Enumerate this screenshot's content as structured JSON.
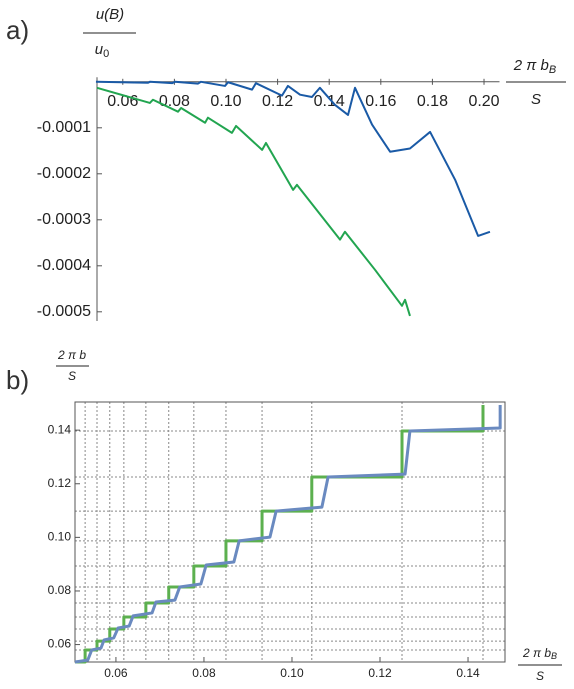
{
  "chart_data": [
    {
      "type": "line",
      "panel_label": "a)",
      "ylabel": {
        "numerator": "u(B)",
        "denominator": "u",
        "denominator_subscript": "0"
      },
      "xlabel": {
        "numerator": "2 π b",
        "numerator_subscript": "B",
        "denominator": "S"
      },
      "frame": false,
      "xlim": [
        0.049,
        0.206
      ],
      "ylim": [
        -0.00052,
        1e-05
      ],
      "xticks": [
        0.06,
        0.08,
        {
          "value": 0.1,
          "label": "0.10"
        },
        0.12,
        0.14,
        0.16,
        0.18,
        {
          "value": 0.2,
          "label": "0.20"
        }
      ],
      "yticks": [
        -0.0001,
        -0.0002,
        -0.0003,
        -0.0004,
        -0.0005
      ],
      "series": [
        {
          "color": "#1a5aa6",
          "x": [
            0.0496,
            0.0698,
            0.0705,
            0.0791,
            0.0802,
            0.0891,
            0.0903,
            0.0996,
            0.1008,
            0.1101,
            0.1116,
            0.1217,
            0.124,
            0.1287,
            0.1333,
            0.1364,
            0.1422,
            0.1473,
            0.15,
            0.1566,
            0.1636,
            0.1713,
            0.1791,
            0.1888,
            0.1977,
            0.2023
          ],
          "values": [
            0,
            -2e-06,
            0,
            -3e-06,
            0,
            -4e-06,
            0,
            -9e-06,
            -1e-06,
            -1.7e-05,
            -3e-06,
            -3e-05,
            -9e-06,
            -2.8e-05,
            -3.3e-05,
            -1.3e-05,
            -5e-05,
            -7.2e-05,
            -1.3e-05,
            -9.3e-05,
            -0.000152,
            -0.000145,
            -0.000109,
            -0.000213,
            -0.000335,
            -0.000326
          ]
        },
        {
          "color": "#22a550",
          "x": [
            0.05,
            0.0705,
            0.0717,
            0.0814,
            0.0826,
            0.0919,
            0.093,
            0.1023,
            0.1039,
            0.114,
            0.1155,
            0.126,
            0.1275,
            0.1442,
            0.1461,
            0.1578,
            0.1682,
            0.1694,
            0.1713
          ],
          "values": [
            -1.3e-05,
            -4.6e-05,
            -3.9e-05,
            -6.5e-05,
            -5.7e-05,
            -8.9e-05,
            -7.8e-05,
            -0.000111,
            -9.6e-05,
            -0.000148,
            -0.000133,
            -0.000235,
            -0.000224,
            -0.000343,
            -0.000326,
            -0.000409,
            -0.000487,
            -0.000474,
            -0.000509
          ]
        }
      ]
    },
    {
      "type": "line",
      "panel_label": "b)",
      "ylabel": {
        "numerator": "2 π b",
        "denominator": "S"
      },
      "xlabel": {
        "numerator": "2 π b",
        "numerator_subscript": "B",
        "denominator": "S"
      },
      "frame": true,
      "grid": true,
      "xlim": [
        0.0507,
        0.1484
      ],
      "ylim": [
        0.0535,
        0.1505
      ],
      "xticks": [
        0.06,
        0.08,
        {
          "value": 0.1,
          "label": "0.10"
        },
        0.12,
        0.14
      ],
      "yticks": [
        0.06,
        0.08,
        {
          "value": 0.1,
          "label": "0.10"
        },
        0.12,
        0.14
      ],
      "xgrid": [
        0.053,
        0.0557,
        0.0586,
        0.0618,
        0.0668,
        0.072,
        0.0777,
        0.085,
        0.0932,
        0.1045,
        0.125,
        0.1434
      ],
      "ygrid": [
        0.058,
        0.0613,
        0.0658,
        0.0703,
        0.0755,
        0.0815,
        0.0893,
        0.0987,
        0.1098,
        0.1225,
        0.1397
      ],
      "series": [
        {
          "color": "#5cb04f",
          "x": [
            0.0507,
            0.053,
            0.053,
            0.0557,
            0.0557,
            0.0586,
            0.0586,
            0.0618,
            0.0618,
            0.0668,
            0.0668,
            0.072,
            0.072,
            0.0777,
            0.0777,
            0.085,
            0.085,
            0.0932,
            0.0932,
            0.1045,
            0.1045,
            0.125,
            0.125,
            0.1434,
            0.1434
          ],
          "values": [
            0.0535,
            0.0535,
            0.058,
            0.058,
            0.0613,
            0.0613,
            0.0658,
            0.0658,
            0.0703,
            0.0703,
            0.0755,
            0.0755,
            0.0815,
            0.0815,
            0.0893,
            0.0893,
            0.0987,
            0.0987,
            0.1098,
            0.1098,
            0.1225,
            0.1225,
            0.1397,
            0.1397,
            0.1494
          ]
        },
        {
          "color": "#6a8ac0",
          "x": [
            0.0507,
            0.0536,
            0.0545,
            0.0566,
            0.0573,
            0.0595,
            0.0605,
            0.063,
            0.0639,
            0.0682,
            0.0691,
            0.0734,
            0.0745,
            0.0793,
            0.0805,
            0.0868,
            0.088,
            0.095,
            0.0964,
            0.1068,
            0.1082,
            0.1257,
            0.1268,
            0.1473,
            0.1473
          ],
          "values": [
            0.0535,
            0.0542,
            0.058,
            0.0587,
            0.0617,
            0.0625,
            0.0662,
            0.0669,
            0.0707,
            0.0718,
            0.0759,
            0.0766,
            0.0815,
            0.0826,
            0.0897,
            0.0908,
            0.0987,
            0.1001,
            0.1098,
            0.1113,
            0.1225,
            0.1236,
            0.1397,
            0.1408,
            0.1494
          ]
        }
      ]
    }
  ]
}
